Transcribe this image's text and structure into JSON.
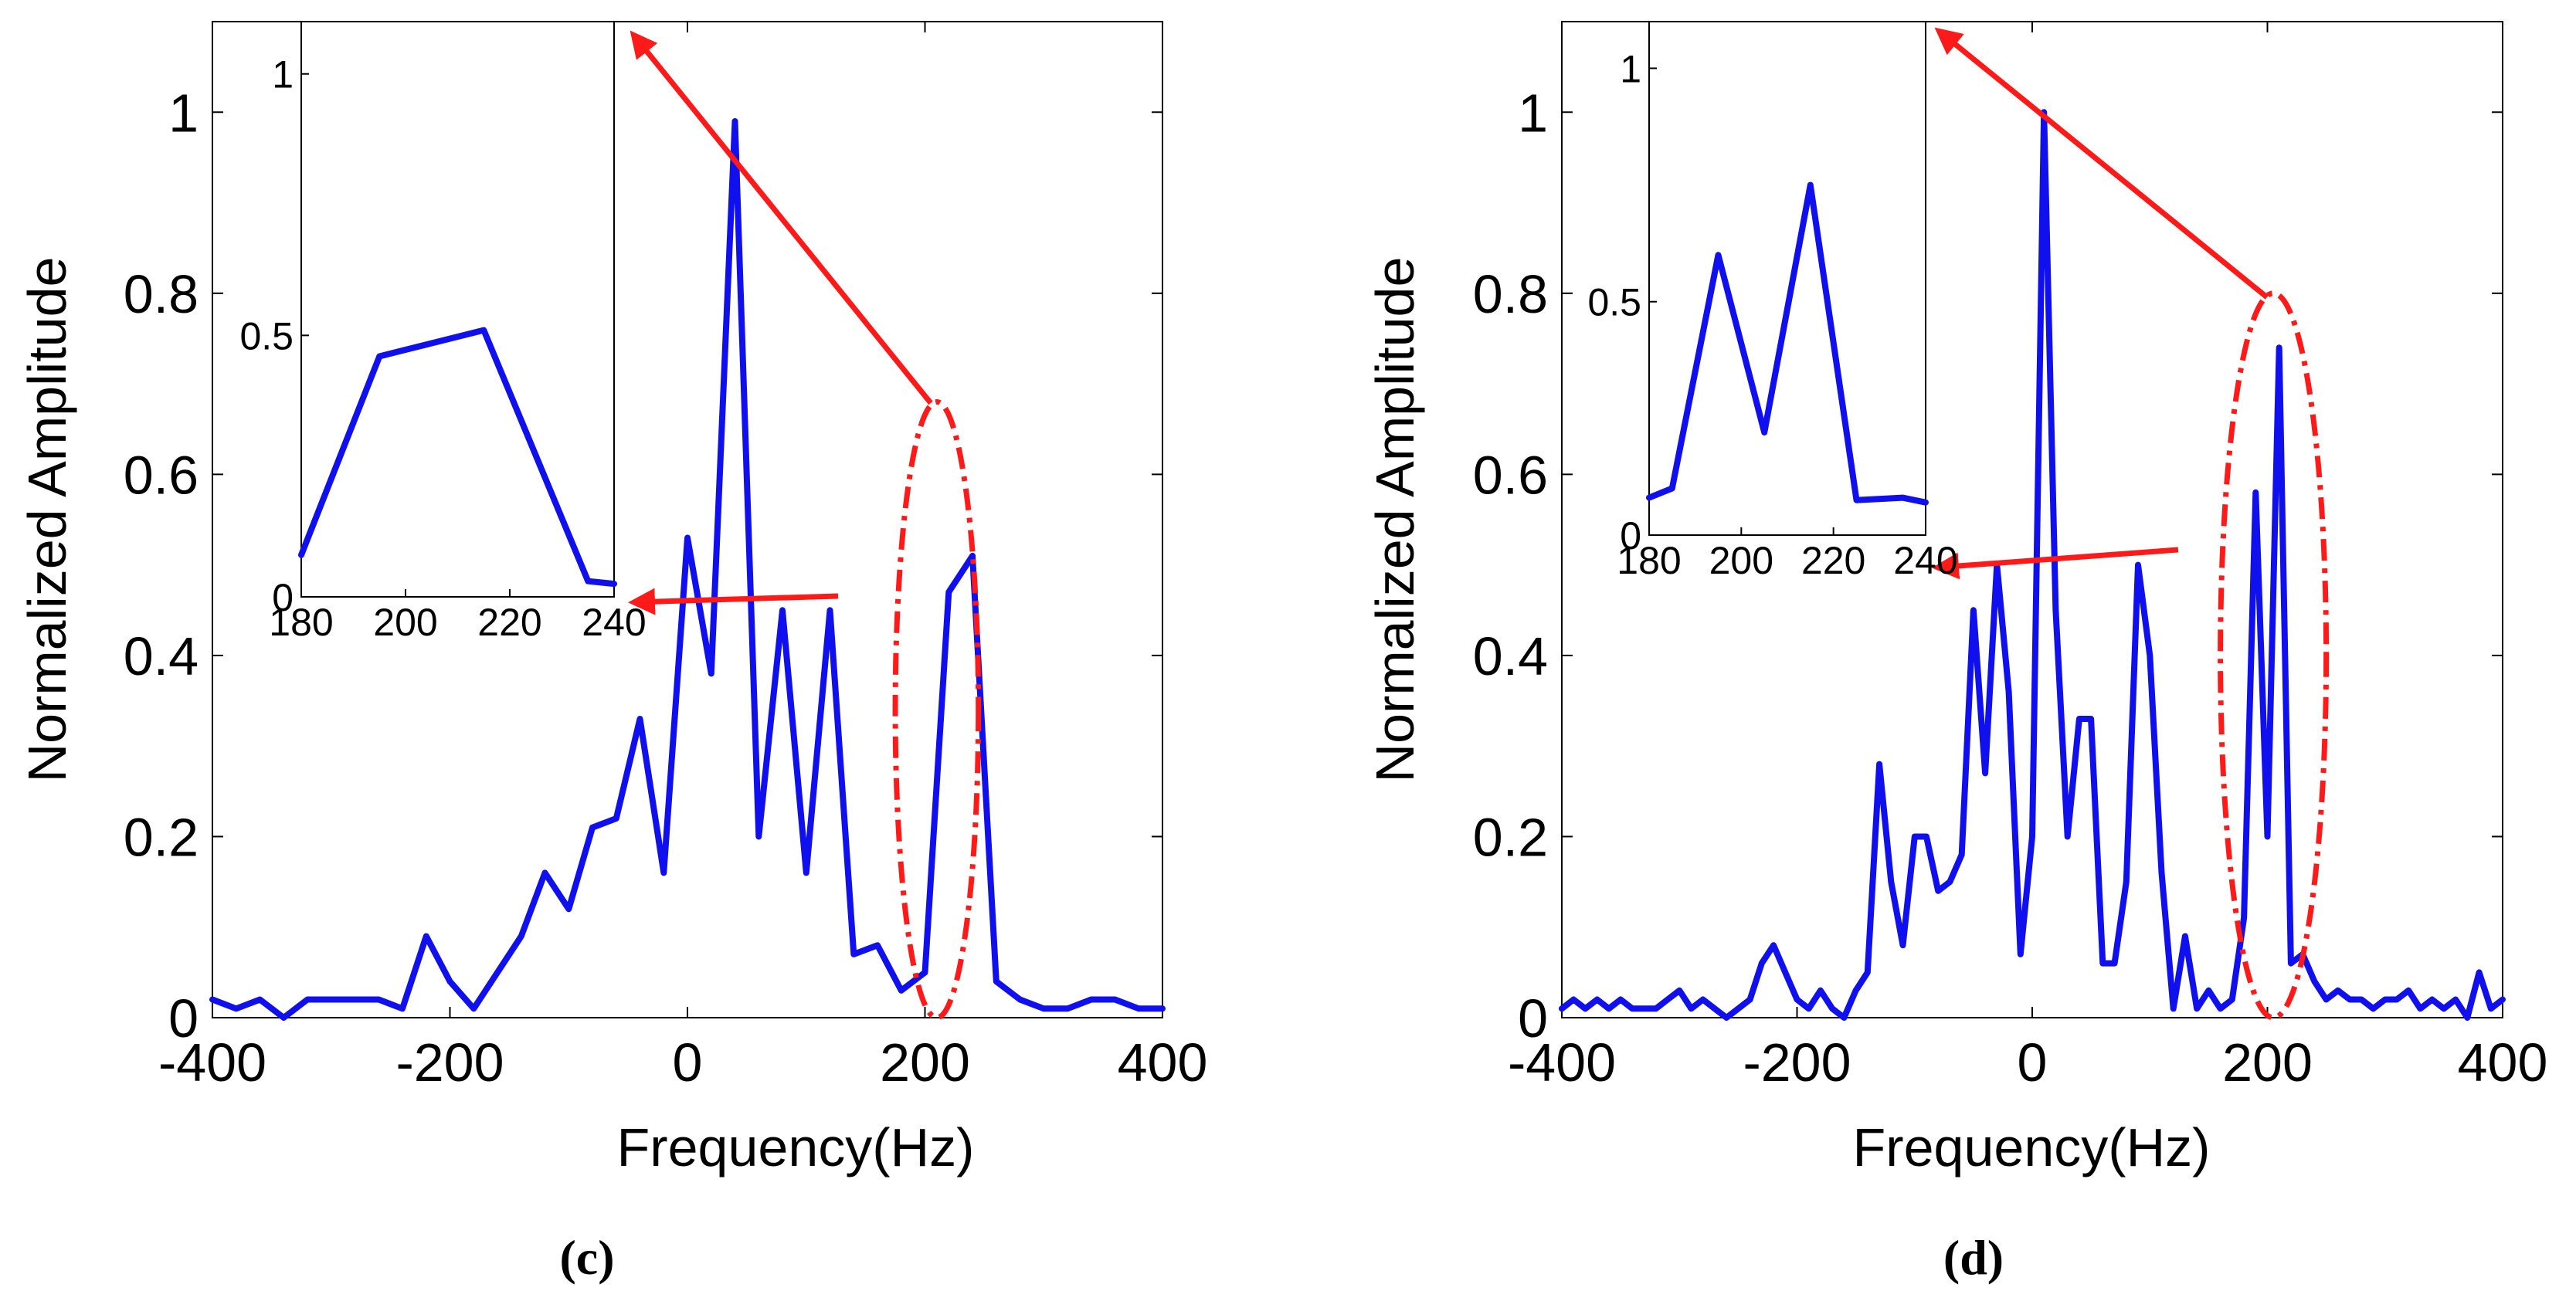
{
  "colors": {
    "series": "#1010ee",
    "annotation": "#ff1a1a",
    "axis": "#000000"
  },
  "chart_data": [
    {
      "type": "line",
      "caption": "(c)",
      "xlabel": "Frequency(Hz)",
      "ylabel": "Normalized Amplitude",
      "xlim": [
        -400,
        400
      ],
      "ylim": [
        0,
        1.1
      ],
      "xticks": [
        "-400",
        "-200",
        "0",
        "200",
        "400"
      ],
      "yticks": [
        "0",
        "0.2",
        "0.4",
        "0.6",
        "0.8",
        "1"
      ],
      "x": [
        -400,
        -380,
        -360,
        -340,
        -320,
        -300,
        -280,
        -260,
        -240,
        -220,
        -200,
        -180,
        -160,
        -140,
        -120,
        -100,
        -80,
        -60,
        -40,
        -20,
        0,
        20,
        40,
        60,
        80,
        100,
        120,
        140,
        160,
        180,
        200,
        220,
        240,
        260,
        280,
        300,
        320,
        340,
        360,
        380,
        400
      ],
      "y": [
        0.02,
        0.01,
        0.02,
        0.0,
        0.02,
        0.02,
        0.02,
        0.02,
        0.01,
        0.09,
        0.04,
        0.01,
        0.05,
        0.09,
        0.16,
        0.12,
        0.21,
        0.22,
        0.33,
        0.16,
        0.53,
        0.38,
        0.99,
        0.2,
        0.45,
        0.16,
        0.45,
        0.07,
        0.08,
        0.03,
        0.05,
        0.47,
        0.51,
        0.04,
        0.02,
        0.01,
        0.01,
        0.02,
        0.02,
        0.01,
        0.01
      ],
      "highlight": {
        "x": 210,
        "y": 0.34,
        "rx": 35,
        "ry": 0.34
      },
      "inset": {
        "xlim": [
          180,
          240
        ],
        "ylim": [
          0,
          1.1
        ],
        "xticks": [
          "180",
          "200",
          "220",
          "240"
        ],
        "yticks": [
          "0",
          "0.5",
          "1"
        ],
        "x": [
          180,
          195,
          215,
          235,
          240
        ],
        "y": [
          0.08,
          0.46,
          0.51,
          0.03,
          0.025
        ]
      }
    },
    {
      "type": "line",
      "caption": "(d)",
      "xlabel": "Frequency(Hz)",
      "ylabel": "Normalized Amplitude",
      "xlim": [
        -400,
        400
      ],
      "ylim": [
        0,
        1.1
      ],
      "xticks": [
        "-400",
        "-200",
        "0",
        "200",
        "400"
      ],
      "yticks": [
        "0",
        "0.2",
        "0.4",
        "0.6",
        "0.8",
        "1"
      ],
      "x": [
        -400,
        -390,
        -380,
        -370,
        -360,
        -350,
        -340,
        -330,
        -320,
        -310,
        -300,
        -290,
        -280,
        -270,
        -260,
        -250,
        -240,
        -230,
        -220,
        -210,
        -200,
        -190,
        -180,
        -170,
        -160,
        -150,
        -140,
        -130,
        -120,
        -110,
        -100,
        -90,
        -80,
        -70,
        -60,
        -50,
        -40,
        -30,
        -20,
        -10,
        0,
        10,
        20,
        30,
        40,
        50,
        60,
        70,
        80,
        90,
        100,
        110,
        120,
        130,
        140,
        150,
        160,
        170,
        180,
        190,
        200,
        210,
        220,
        230,
        240,
        250,
        260,
        270,
        280,
        290,
        300,
        310,
        320,
        330,
        340,
        350,
        360,
        370,
        380,
        390,
        400
      ],
      "y": [
        0.01,
        0.02,
        0.01,
        0.02,
        0.01,
        0.02,
        0.01,
        0.01,
        0.01,
        0.02,
        0.03,
        0.01,
        0.02,
        0.01,
        0.0,
        0.01,
        0.02,
        0.06,
        0.08,
        0.05,
        0.02,
        0.01,
        0.03,
        0.01,
        0.0,
        0.03,
        0.05,
        0.28,
        0.15,
        0.08,
        0.2,
        0.2,
        0.14,
        0.15,
        0.18,
        0.45,
        0.27,
        0.5,
        0.36,
        0.07,
        0.2,
        1.0,
        0.45,
        0.2,
        0.33,
        0.33,
        0.06,
        0.06,
        0.15,
        0.5,
        0.4,
        0.16,
        0.01,
        0.09,
        0.01,
        0.03,
        0.01,
        0.02,
        0.11,
        0.58,
        0.2,
        0.74,
        0.06,
        0.07,
        0.04,
        0.02,
        0.03,
        0.02,
        0.02,
        0.01,
        0.02,
        0.02,
        0.03,
        0.01,
        0.02,
        0.01,
        0.02,
        0.0,
        0.05,
        0.01,
        0.02
      ],
      "highlight": {
        "x": 205,
        "y": 0.4,
        "rx": 45,
        "ry": 0.4
      },
      "inset": {
        "xlim": [
          180,
          240
        ],
        "ylim": [
          0,
          1.1
        ],
        "xticks": [
          "180",
          "200",
          "220",
          "240"
        ],
        "yticks": [
          "0",
          "0.5",
          "1"
        ],
        "x": [
          180,
          185,
          195,
          205,
          215,
          225,
          235,
          240
        ],
        "y": [
          0.08,
          0.1,
          0.6,
          0.22,
          0.75,
          0.075,
          0.08,
          0.07
        ]
      }
    }
  ]
}
